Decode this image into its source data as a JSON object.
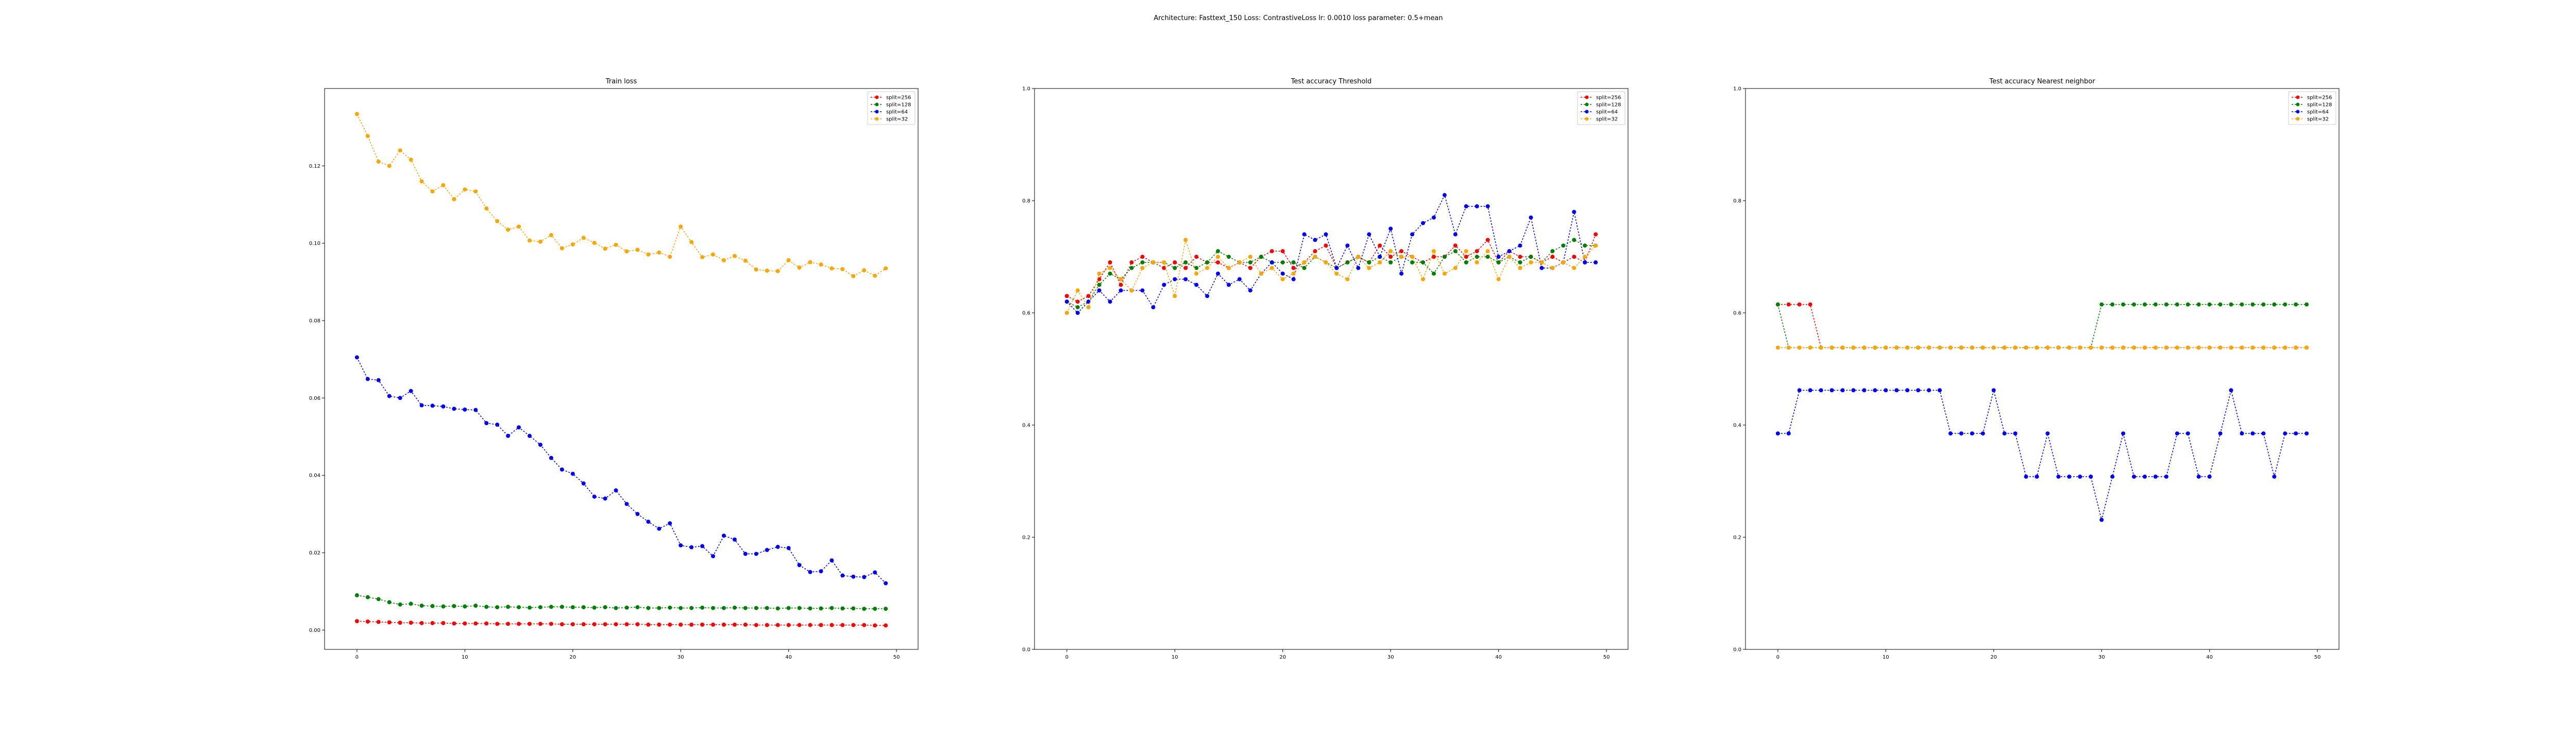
{
  "figure": {
    "suptitle": "Architecture: Fasttext_150 Loss: ContrastiveLoss lr: 0.0010 loss parameter: 0.5+mean"
  },
  "colors": {
    "split=256": "#ff0000",
    "split=128": "#008000",
    "split=64": "#0000ff",
    "split=32": "#ffa500"
  },
  "chart_data": [
    {
      "type": "line",
      "title": "Train loss",
      "xlabel": "",
      "ylabel": "",
      "xlim": [
        -3,
        52
      ],
      "ylim": [
        -0.005,
        0.14
      ],
      "xticks": [
        0,
        10,
        20,
        30,
        40,
        50
      ],
      "yticks": [
        0.0,
        0.02,
        0.04,
        0.06,
        0.08,
        0.1,
        0.12
      ],
      "ytick_labels": [
        "0.00",
        "0.02",
        "0.04",
        "0.06",
        "0.08",
        "0.10",
        "0.12"
      ],
      "legend": {
        "position": "top-right",
        "entries": [
          "split=256",
          "split=128",
          "split=64",
          "split=32"
        ]
      },
      "series": [
        {
          "name": "split=256",
          "color": "#ff0000",
          "marker": "circle",
          "values": [
            0.0023,
            0.0022,
            0.0021,
            0.002,
            0.0019,
            0.0019,
            0.0018,
            0.0018,
            0.0018,
            0.0017,
            0.0017,
            0.0017,
            0.0017,
            0.0016,
            0.0016,
            0.0016,
            0.0016,
            0.0016,
            0.0016,
            0.0015,
            0.0015,
            0.0015,
            0.0015,
            0.0015,
            0.0015,
            0.0015,
            0.0015,
            0.0014,
            0.0014,
            0.0014,
            0.0014,
            0.0014,
            0.0014,
            0.0014,
            0.0014,
            0.0014,
            0.0014,
            0.0013,
            0.0013,
            0.0013,
            0.0013,
            0.0013,
            0.0013,
            0.0013,
            0.0013,
            0.0013,
            0.0013,
            0.0013,
            0.0012,
            0.0012
          ]
        },
        {
          "name": "split=128",
          "color": "#008000",
          "marker": "circle",
          "values": [
            0.009,
            0.0085,
            0.008,
            0.0072,
            0.0066,
            0.0068,
            0.0063,
            0.0062,
            0.0061,
            0.0062,
            0.0061,
            0.0063,
            0.006,
            0.0059,
            0.006,
            0.0059,
            0.0058,
            0.0059,
            0.006,
            0.006,
            0.0059,
            0.0059,
            0.0058,
            0.0059,
            0.0057,
            0.0058,
            0.0059,
            0.0057,
            0.0057,
            0.0058,
            0.0057,
            0.0057,
            0.0058,
            0.0057,
            0.0057,
            0.0058,
            0.0057,
            0.0057,
            0.0057,
            0.0056,
            0.0057,
            0.0057,
            0.0056,
            0.0056,
            0.0057,
            0.0056,
            0.0056,
            0.0055,
            0.0055,
            0.0055
          ]
        },
        {
          "name": "split=64",
          "color": "#0000ff",
          "marker": "circle",
          "values": [
            0.0705,
            0.0649,
            0.0646,
            0.0605,
            0.06,
            0.0618,
            0.0581,
            0.058,
            0.0578,
            0.0572,
            0.057,
            0.0569,
            0.0535,
            0.0531,
            0.0502,
            0.0524,
            0.0502,
            0.0479,
            0.0445,
            0.0415,
            0.0404,
            0.0379,
            0.0345,
            0.034,
            0.0361,
            0.0326,
            0.03,
            0.028,
            0.0262,
            0.0276,
            0.0219,
            0.0214,
            0.0217,
            0.0191,
            0.0244,
            0.0234,
            0.0197,
            0.0197,
            0.0207,
            0.0215,
            0.0212,
            0.0168,
            0.015,
            0.0152,
            0.018,
            0.0141,
            0.0138,
            0.0137,
            0.0149,
            0.0121
          ]
        },
        {
          "name": "split=32",
          "color": "#ffa500",
          "marker": "circle",
          "values": [
            0.1334,
            0.1277,
            0.1211,
            0.12,
            0.124,
            0.1216,
            0.116,
            0.1134,
            0.115,
            0.1114,
            0.1139,
            0.1134,
            0.109,
            0.1057,
            0.1035,
            0.1043,
            0.1007,
            0.1004,
            0.1021,
            0.0987,
            0.0997,
            0.1014,
            0.1001,
            0.0986,
            0.0996,
            0.0979,
            0.0983,
            0.0971,
            0.0976,
            0.0965,
            0.1043,
            0.1003,
            0.0964,
            0.0971,
            0.0956,
            0.0967,
            0.0955,
            0.0932,
            0.0929,
            0.0928,
            0.0956,
            0.0937,
            0.0951,
            0.0945,
            0.0935,
            0.0933,
            0.0915,
            0.093,
            0.0916,
            0.0935
          ]
        }
      ]
    },
    {
      "type": "line",
      "title": "Test accuracy Threshold",
      "xlabel": "",
      "ylabel": "",
      "xlim": [
        -3,
        52
      ],
      "ylim": [
        0.0,
        1.0
      ],
      "xticks": [
        0,
        10,
        20,
        30,
        40,
        50
      ],
      "yticks": [
        0.0,
        0.2,
        0.4,
        0.6,
        0.8,
        1.0
      ],
      "ytick_labels": [
        "0.0",
        "0.2",
        "0.4",
        "0.6",
        "0.8",
        "1.0"
      ],
      "legend": {
        "position": "top-right",
        "entries": [
          "split=256",
          "split=128",
          "split=64",
          "split=32"
        ]
      },
      "series": [
        {
          "name": "split=256",
          "color": "#ff0000",
          "marker": "circle",
          "values": [
            0.63,
            0.62,
            0.63,
            0.66,
            0.69,
            0.65,
            0.69,
            0.7,
            0.69,
            0.68,
            0.69,
            0.68,
            0.7,
            0.69,
            0.69,
            0.68,
            0.69,
            0.68,
            0.7,
            0.71,
            0.71,
            0.68,
            0.69,
            0.71,
            0.72,
            0.68,
            0.69,
            0.7,
            0.69,
            0.72,
            0.7,
            0.71,
            0.7,
            0.69,
            0.7,
            0.7,
            0.72,
            0.7,
            0.71,
            0.73,
            0.69,
            0.71,
            0.7,
            0.7,
            0.69,
            0.7,
            0.69,
            0.7,
            0.69,
            0.74
          ]
        },
        {
          "name": "split=128",
          "color": "#008000",
          "marker": "circle",
          "values": [
            0.62,
            0.61,
            0.62,
            0.65,
            0.67,
            0.66,
            0.68,
            0.69,
            0.69,
            0.69,
            0.68,
            0.69,
            0.68,
            0.69,
            0.71,
            0.7,
            0.69,
            0.69,
            0.7,
            0.69,
            0.69,
            0.69,
            0.68,
            0.7,
            0.69,
            0.68,
            0.69,
            0.7,
            0.69,
            0.7,
            0.69,
            0.7,
            0.69,
            0.69,
            0.67,
            0.7,
            0.71,
            0.69,
            0.7,
            0.7,
            0.69,
            0.7,
            0.69,
            0.7,
            0.69,
            0.71,
            0.72,
            0.73,
            0.72,
            0.72
          ]
        },
        {
          "name": "split=64",
          "color": "#0000ff",
          "marker": "circle",
          "values": [
            0.62,
            0.6,
            0.62,
            0.64,
            0.62,
            0.64,
            0.64,
            0.64,
            0.61,
            0.65,
            0.66,
            0.66,
            0.65,
            0.63,
            0.67,
            0.65,
            0.66,
            0.64,
            0.67,
            0.69,
            0.67,
            0.66,
            0.74,
            0.73,
            0.74,
            0.68,
            0.72,
            0.68,
            0.74,
            0.7,
            0.75,
            0.67,
            0.74,
            0.76,
            0.77,
            0.81,
            0.74,
            0.79,
            0.79,
            0.79,
            0.7,
            0.71,
            0.72,
            0.77,
            0.68,
            0.68,
            0.69,
            0.78,
            0.69,
            0.69
          ]
        },
        {
          "name": "split=32",
          "color": "#ffa500",
          "marker": "circle",
          "values": [
            0.6,
            0.64,
            0.61,
            0.67,
            0.68,
            0.66,
            0.64,
            0.68,
            0.69,
            0.69,
            0.63,
            0.73,
            0.67,
            0.68,
            0.7,
            0.68,
            0.69,
            0.7,
            0.67,
            0.68,
            0.66,
            0.67,
            0.69,
            0.7,
            0.69,
            0.67,
            0.66,
            0.7,
            0.68,
            0.69,
            0.71,
            0.7,
            0.7,
            0.66,
            0.71,
            0.67,
            0.68,
            0.71,
            0.69,
            0.71,
            0.66,
            0.7,
            0.68,
            0.69,
            0.69,
            0.68,
            0.69,
            0.68,
            0.7,
            0.72
          ]
        }
      ]
    },
    {
      "type": "line",
      "title": "Test accuracy Nearest neighbor",
      "xlabel": "",
      "ylabel": "",
      "xlim": [
        -3,
        52
      ],
      "ylim": [
        0.0,
        1.0
      ],
      "xticks": [
        0,
        10,
        20,
        30,
        40,
        50
      ],
      "yticks": [
        0.0,
        0.2,
        0.4,
        0.6,
        0.8,
        1.0
      ],
      "ytick_labels": [
        "0.0",
        "0.2",
        "0.4",
        "0.6",
        "0.8",
        "1.0"
      ],
      "legend": {
        "position": "top-right",
        "entries": [
          "split=256",
          "split=128",
          "split=64",
          "split=32"
        ]
      },
      "series": [
        {
          "name": "split=256",
          "color": "#ff0000",
          "marker": "circle",
          "values": [
            0.615,
            0.615,
            0.615,
            0.615,
            0.538,
            0.538,
            0.538,
            0.538,
            0.538,
            0.538,
            0.538,
            0.538,
            0.538,
            0.538,
            0.538,
            0.538,
            0.538,
            0.538,
            0.538,
            0.538,
            0.538,
            0.538,
            0.538,
            0.538,
            0.538,
            0.538,
            0.538,
            0.538,
            0.538,
            0.538,
            0.538,
            0.538,
            0.538,
            0.538,
            0.538,
            0.538,
            0.538,
            0.538,
            0.538,
            0.538,
            0.538,
            0.538,
            0.538,
            0.538,
            0.538,
            0.538,
            0.538,
            0.538,
            0.538,
            0.538
          ]
        },
        {
          "name": "split=128",
          "color": "#008000",
          "marker": "circle",
          "values": [
            0.615,
            0.538,
            0.538,
            0.538,
            0.538,
            0.538,
            0.538,
            0.538,
            0.538,
            0.538,
            0.538,
            0.538,
            0.538,
            0.538,
            0.538,
            0.538,
            0.538,
            0.538,
            0.538,
            0.538,
            0.538,
            0.538,
            0.538,
            0.538,
            0.538,
            0.538,
            0.538,
            0.538,
            0.538,
            0.538,
            0.615,
            0.615,
            0.615,
            0.615,
            0.615,
            0.615,
            0.615,
            0.615,
            0.615,
            0.615,
            0.615,
            0.615,
            0.615,
            0.615,
            0.615,
            0.615,
            0.615,
            0.615,
            0.615,
            0.615
          ]
        },
        {
          "name": "split=64",
          "color": "#0000ff",
          "marker": "circle",
          "values": [
            0.385,
            0.385,
            0.462,
            0.462,
            0.462,
            0.462,
            0.462,
            0.462,
            0.462,
            0.462,
            0.462,
            0.462,
            0.462,
            0.462,
            0.462,
            0.462,
            0.385,
            0.385,
            0.385,
            0.385,
            0.462,
            0.385,
            0.385,
            0.308,
            0.308,
            0.385,
            0.308,
            0.308,
            0.308,
            0.308,
            0.231,
            0.308,
            0.385,
            0.308,
            0.308,
            0.308,
            0.308,
            0.385,
            0.385,
            0.308,
            0.308,
            0.385,
            0.462,
            0.385,
            0.385,
            0.385,
            0.308,
            0.385,
            0.385,
            0.385
          ]
        },
        {
          "name": "split=32",
          "color": "#ffa500",
          "marker": "circle",
          "values": [
            0.538,
            0.538,
            0.538,
            0.538,
            0.538,
            0.538,
            0.538,
            0.538,
            0.538,
            0.538,
            0.538,
            0.538,
            0.538,
            0.538,
            0.538,
            0.538,
            0.538,
            0.538,
            0.538,
            0.538,
            0.538,
            0.538,
            0.538,
            0.538,
            0.538,
            0.538,
            0.538,
            0.538,
            0.538,
            0.538,
            0.538,
            0.538,
            0.538,
            0.538,
            0.538,
            0.538,
            0.538,
            0.538,
            0.538,
            0.538,
            0.538,
            0.538,
            0.538,
            0.538,
            0.538,
            0.538,
            0.538,
            0.538,
            0.538,
            0.538
          ]
        }
      ]
    }
  ]
}
